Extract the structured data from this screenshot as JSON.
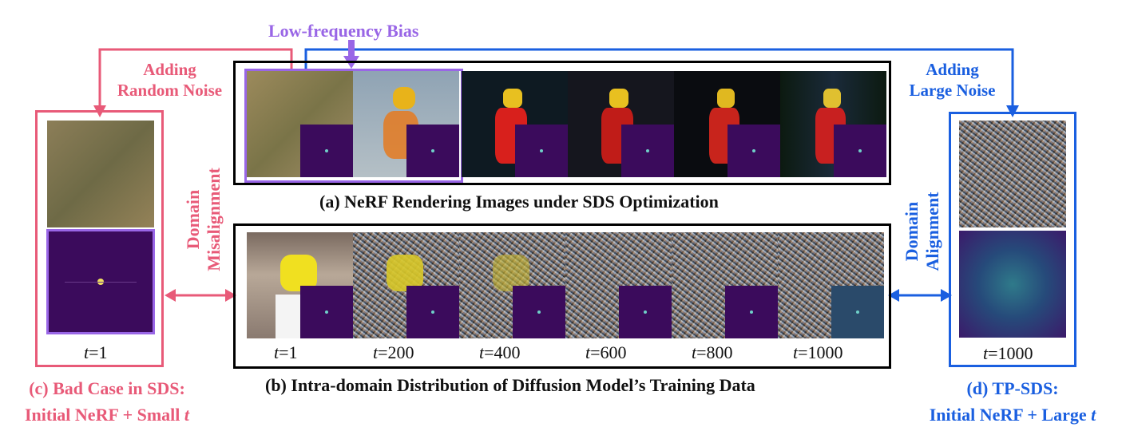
{
  "top_label": "Low-frequency Bias",
  "left_arrow_label": [
    "Adding",
    "Random Noise"
  ],
  "right_arrow_label": [
    "Adding",
    "Large Noise"
  ],
  "panel_a_caption": "(a) NeRF Rendering Images under SDS Optimization",
  "panel_b_caption": "(b) Intra-domain Distribution of Diffusion Model’s Training Data",
  "panel_c_caption": [
    "(c) Bad Case in SDS:",
    "Initial NeRF + Small "
  ],
  "panel_c_var": "t",
  "panel_d_caption": [
    "(d) TP-SDS:",
    "Initial NeRF + Large "
  ],
  "panel_d_var": "t",
  "misalignment_label": [
    "Domain",
    "Misalignment"
  ],
  "alignment_label": [
    "Domain",
    "Alignment"
  ],
  "panel_c_t": {
    "var": "t",
    "value": "=1"
  },
  "panel_d_t": {
    "var": "t",
    "value": "=1000"
  },
  "timesteps": [
    {
      "var": "t",
      "value": "=1"
    },
    {
      "var": "t",
      "value": "=200"
    },
    {
      "var": "t",
      "value": "=400"
    },
    {
      "var": "t",
      "value": "=600"
    },
    {
      "var": "t",
      "value": "=800"
    },
    {
      "var": "t",
      "value": "=1000"
    }
  ],
  "colors": {
    "pink": "#e85a78",
    "blue": "#1a5fe0",
    "purple": "#9966e6",
    "spectrum": "#3b0b5c"
  }
}
